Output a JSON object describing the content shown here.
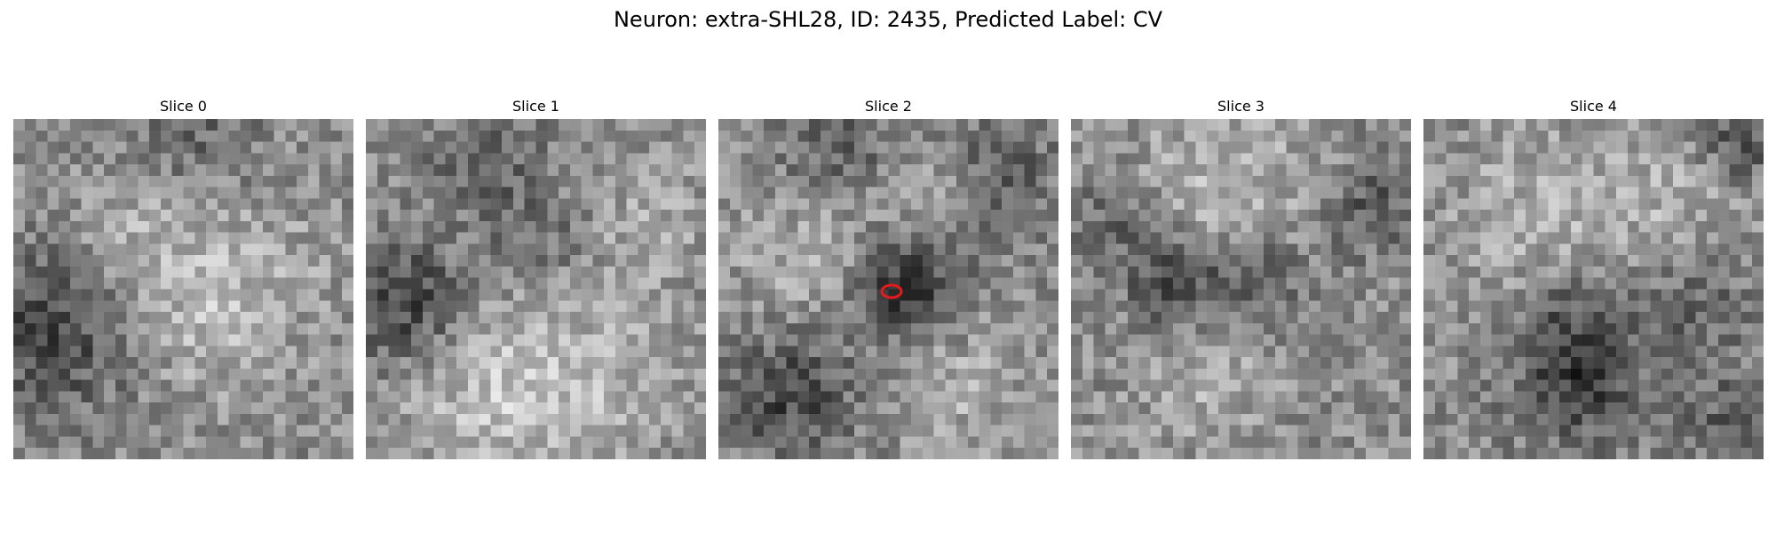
{
  "figure": {
    "title": "Neuron: extra-SHL28, ID: 2435, Predicted Label: CV"
  },
  "slices": [
    {
      "label": "Slice 0",
      "has_marker": false
    },
    {
      "label": "Slice 1",
      "has_marker": false
    },
    {
      "label": "Slice 2",
      "has_marker": true
    },
    {
      "label": "Slice 3",
      "has_marker": false
    },
    {
      "label": "Slice 4",
      "has_marker": false
    }
  ],
  "colors": {
    "colormap": "grayscale",
    "marker": "#e41a1c"
  }
}
